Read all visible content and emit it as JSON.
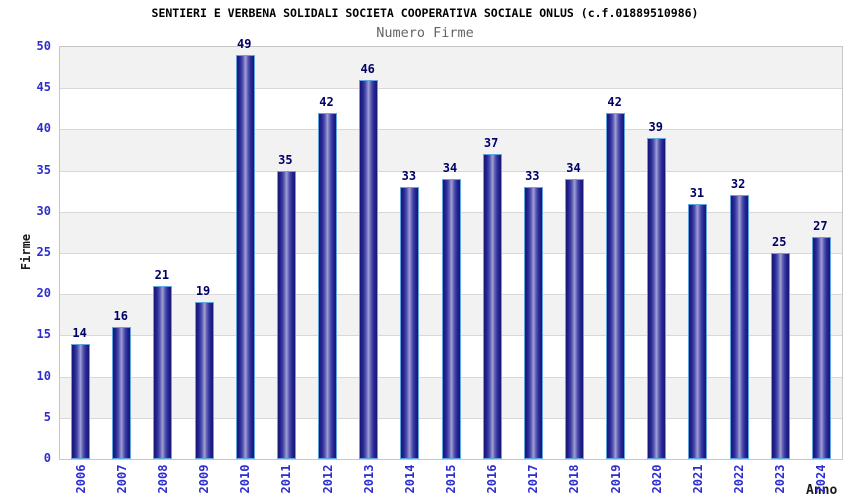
{
  "header": {
    "title": "SENTIERI E VERBENA SOLIDALI SOCIETA COOPERATIVA SOCIALE ONLUS (c.f.01889510986)",
    "subtitle": "Numero Firme"
  },
  "chart_data": {
    "type": "bar",
    "title": "Numero Firme",
    "xlabel": "Anno",
    "ylabel": "Firme",
    "categories": [
      "2006",
      "2007",
      "2008",
      "2009",
      "2010",
      "2011",
      "2012",
      "2013",
      "2014",
      "2015",
      "2016",
      "2017",
      "2018",
      "2019",
      "2020",
      "2021",
      "2022",
      "2023",
      "2024"
    ],
    "values": [
      14,
      16,
      21,
      19,
      49,
      35,
      42,
      46,
      33,
      34,
      37,
      33,
      34,
      42,
      39,
      31,
      32,
      25,
      27
    ],
    "ylim": [
      0,
      50
    ],
    "ytick_step": 5,
    "grid": "horizontal-bands",
    "legend_position": "none"
  },
  "colors": {
    "bar_edge_dark": "#17176f",
    "bar_center_light": "#a2a2d8",
    "bar_border": "#61a6df",
    "tick_label": "#2d2dd0",
    "value_label": "#000066",
    "band_gray": "#f2f2f2",
    "band_white": "#ffffff",
    "plot_border": "#c6c6c6",
    "title_color": "#000000",
    "subtitle_color": "#666666"
  }
}
